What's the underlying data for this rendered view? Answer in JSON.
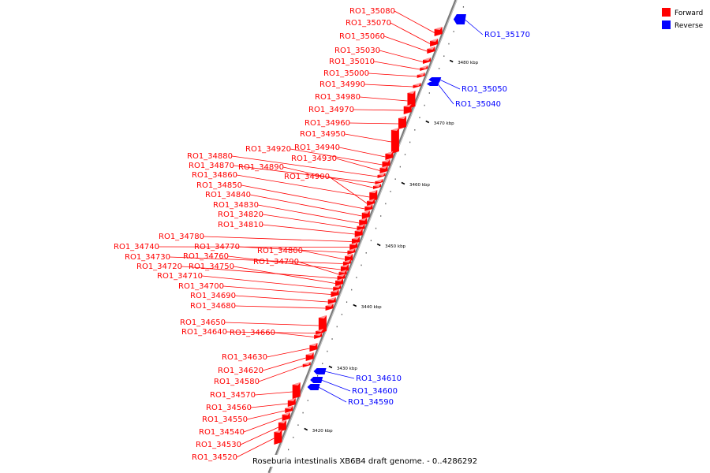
{
  "legend": [
    {
      "label": "Forward",
      "color": "#ff0000"
    },
    {
      "label": "Reverse",
      "color": "#0000ff"
    }
  ],
  "caption": "Roseburia intestinalis XB6B4 draft genome. - 0..4286292",
  "colors": {
    "forward": "#ff0000",
    "reverse": "#0000ff",
    "backbone": "#999999",
    "tick": "#000000"
  },
  "ticks": [
    "3420 kbp",
    "3430 kbp",
    "3440 kbp",
    "3450 kbp",
    "3460 kbp",
    "3470 kbp",
    "3480 kbp"
  ],
  "genes": [
    {
      "label": "RO1_35080",
      "strand": "forward"
    },
    {
      "label": "RO1_35070",
      "strand": "forward"
    },
    {
      "label": "RO1_35060",
      "strand": "forward"
    },
    {
      "label": "RO1_35030",
      "strand": "forward"
    },
    {
      "label": "RO1_35010",
      "strand": "forward"
    },
    {
      "label": "RO1_35000",
      "strand": "forward"
    },
    {
      "label": "RO1_34990",
      "strand": "forward"
    },
    {
      "label": "RO1_34980",
      "strand": "forward"
    },
    {
      "label": "RO1_34970",
      "strand": "forward"
    },
    {
      "label": "RO1_34960",
      "strand": "forward"
    },
    {
      "label": "RO1_34950",
      "strand": "forward"
    },
    {
      "label": "RO1_34940",
      "strand": "forward"
    },
    {
      "label": "RO1_34920",
      "strand": "forward"
    },
    {
      "label": "RO1_34930",
      "strand": "forward"
    },
    {
      "label": "RO1_34880",
      "strand": "forward"
    },
    {
      "label": "RO1_34870",
      "strand": "forward"
    },
    {
      "label": "RO1_34890",
      "strand": "forward"
    },
    {
      "label": "RO1_34860",
      "strand": "forward"
    },
    {
      "label": "RO1_34900",
      "strand": "forward"
    },
    {
      "label": "RO1_34850",
      "strand": "forward"
    },
    {
      "label": "RO1_34840",
      "strand": "forward"
    },
    {
      "label": "RO1_34830",
      "strand": "forward"
    },
    {
      "label": "RO1_34820",
      "strand": "forward"
    },
    {
      "label": "RO1_34810",
      "strand": "forward"
    },
    {
      "label": "RO1_34780",
      "strand": "forward"
    },
    {
      "label": "RO1_34740",
      "strand": "forward"
    },
    {
      "label": "RO1_34770",
      "strand": "forward"
    },
    {
      "label": "RO1_34800",
      "strand": "forward"
    },
    {
      "label": "RO1_34730",
      "strand": "forward"
    },
    {
      "label": "RO1_34760",
      "strand": "forward"
    },
    {
      "label": "RO1_34790",
      "strand": "forward"
    },
    {
      "label": "RO1_34720",
      "strand": "forward"
    },
    {
      "label": "RO1_34750",
      "strand": "forward"
    },
    {
      "label": "RO1_34710",
      "strand": "forward"
    },
    {
      "label": "RO1_34700",
      "strand": "forward"
    },
    {
      "label": "RO1_34690",
      "strand": "forward"
    },
    {
      "label": "RO1_34680",
      "strand": "forward"
    },
    {
      "label": "RO1_34650",
      "strand": "forward"
    },
    {
      "label": "RO1_34640",
      "strand": "forward"
    },
    {
      "label": "RO1_34660",
      "strand": "forward"
    },
    {
      "label": "RO1_34630",
      "strand": "forward"
    },
    {
      "label": "RO1_34620",
      "strand": "forward"
    },
    {
      "label": "RO1_34580",
      "strand": "forward"
    },
    {
      "label": "RO1_34570",
      "strand": "forward"
    },
    {
      "label": "RO1_34560",
      "strand": "forward"
    },
    {
      "label": "RO1_34550",
      "strand": "forward"
    },
    {
      "label": "RO1_34540",
      "strand": "forward"
    },
    {
      "label": "RO1_34530",
      "strand": "forward"
    },
    {
      "label": "RO1_34520",
      "strand": "forward"
    },
    {
      "label": "RO1_35170",
      "strand": "reverse"
    },
    {
      "label": "RO1_35050",
      "strand": "reverse"
    },
    {
      "label": "RO1_35040",
      "strand": "reverse"
    },
    {
      "label": "RO1_34610",
      "strand": "reverse"
    },
    {
      "label": "RO1_34600",
      "strand": "reverse"
    },
    {
      "label": "RO1_34590",
      "strand": "reverse"
    }
  ]
}
